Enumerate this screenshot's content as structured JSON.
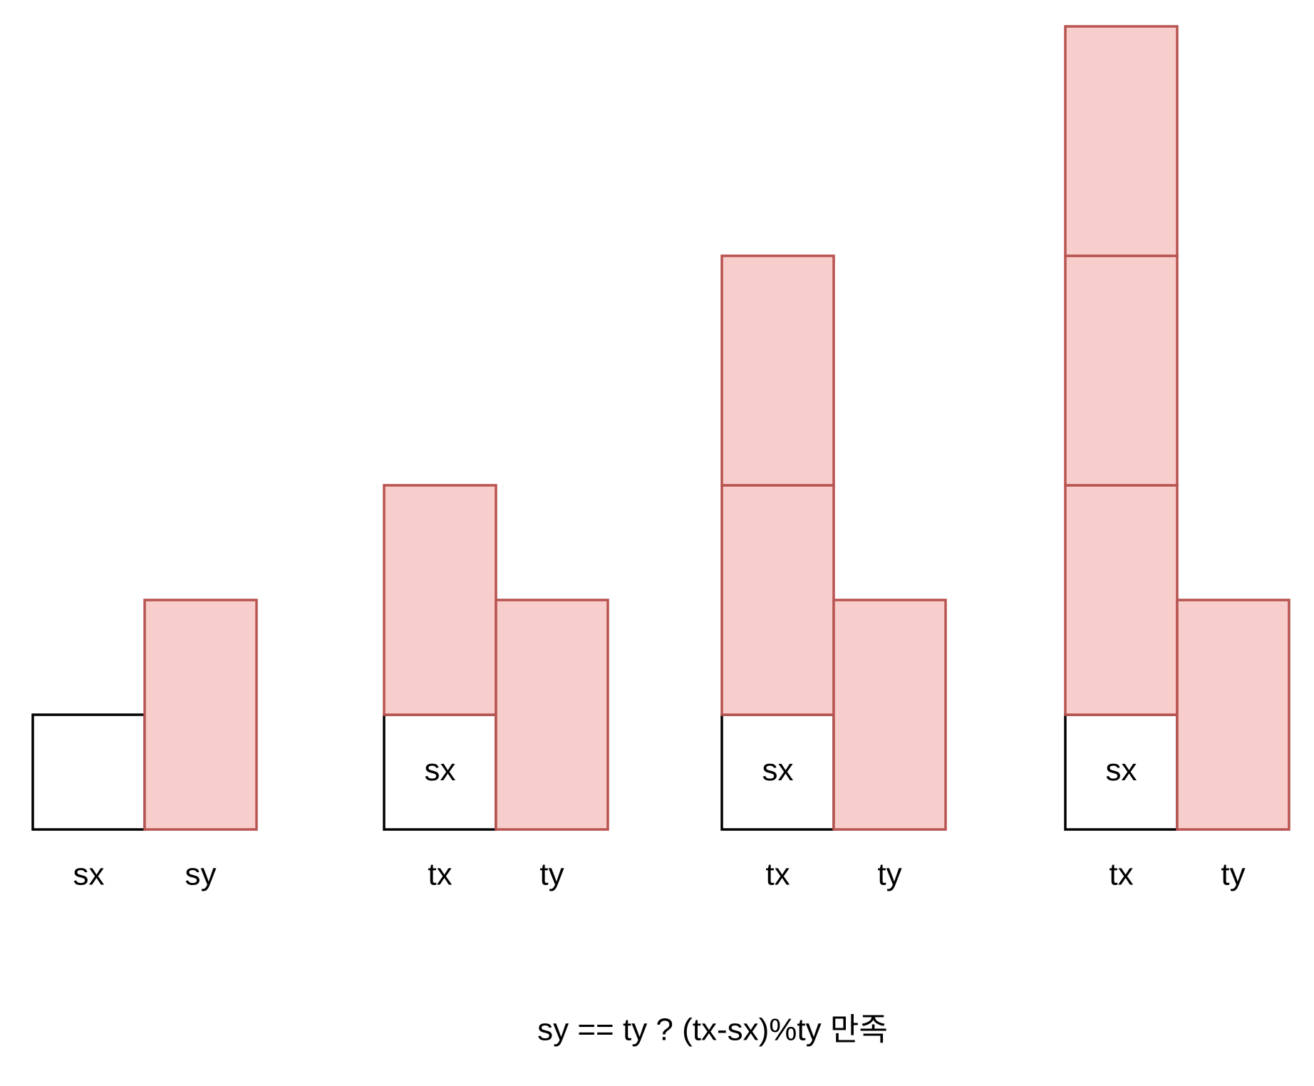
{
  "caption": "sy == ty ? (tx-sx)%ty 만족",
  "colors": {
    "red_fill": "#f8cecc",
    "red_stroke": "#b85450",
    "white_fill": "#ffffff",
    "white_stroke": "#000000"
  },
  "groups": [
    {
      "columns": [
        {
          "label": "sx",
          "stack": [
            {
              "kind": "white",
              "units": 1,
              "text": ""
            }
          ]
        },
        {
          "label": "sy",
          "stack": [
            {
              "kind": "red",
              "units": 2,
              "text": ""
            }
          ]
        }
      ]
    },
    {
      "columns": [
        {
          "label": "tx",
          "stack": [
            {
              "kind": "white",
              "units": 1,
              "text": "sx"
            },
            {
              "kind": "red",
              "units": 2,
              "text": ""
            }
          ]
        },
        {
          "label": "ty",
          "stack": [
            {
              "kind": "red",
              "units": 2,
              "text": ""
            }
          ]
        }
      ]
    },
    {
      "columns": [
        {
          "label": "tx",
          "stack": [
            {
              "kind": "white",
              "units": 1,
              "text": "sx"
            },
            {
              "kind": "red",
              "units": 2,
              "text": ""
            },
            {
              "kind": "red",
              "units": 2,
              "text": ""
            }
          ]
        },
        {
          "label": "ty",
          "stack": [
            {
              "kind": "red",
              "units": 2,
              "text": ""
            }
          ]
        }
      ]
    },
    {
      "columns": [
        {
          "label": "tx",
          "stack": [
            {
              "kind": "white",
              "units": 1,
              "text": "sx"
            },
            {
              "kind": "red",
              "units": 2,
              "text": ""
            },
            {
              "kind": "red",
              "units": 2,
              "text": ""
            },
            {
              "kind": "red",
              "units": 2,
              "text": ""
            }
          ]
        },
        {
          "label": "ty",
          "stack": [
            {
              "kind": "red",
              "units": 2,
              "text": ""
            }
          ]
        }
      ]
    }
  ]
}
